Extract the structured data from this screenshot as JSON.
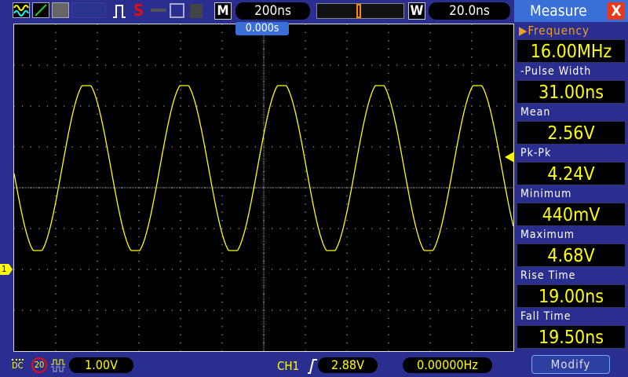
{
  "toolbar": {
    "timebase": "200ns",
    "window": "20.0ns",
    "m_label": "M",
    "w_label": "W",
    "stop_icon": "S"
  },
  "trigger_position": "0.000s",
  "channel_marker": "1",
  "bottom": {
    "coupling": "DC",
    "bw_limit": "20",
    "ch1_scale": "1.00V",
    "trigger_source": "CH1",
    "trigger_level": "2.88V",
    "frequency": "0.00000Hz"
  },
  "measure": {
    "title": "Measure",
    "close": "X",
    "items": [
      {
        "label": "Frequency",
        "value": "16.00MHz"
      },
      {
        "label": "-Pulse Width",
        "value": "31.00ns"
      },
      {
        "label": "Mean",
        "value": "2.56V"
      },
      {
        "label": "Pk-Pk",
        "value": "4.24V"
      },
      {
        "label": "Minimum",
        "value": "440mV"
      },
      {
        "label": "Maximum",
        "value": "4.68V"
      },
      {
        "label": "Rise Time",
        "value": "19.00ns"
      },
      {
        "label": "Fall Time",
        "value": "19.50ns"
      }
    ],
    "modify": "Modify"
  },
  "colors": {
    "trace": "#ffff00",
    "background": "#2a2f8f",
    "accent": "#3a6fd8"
  }
}
